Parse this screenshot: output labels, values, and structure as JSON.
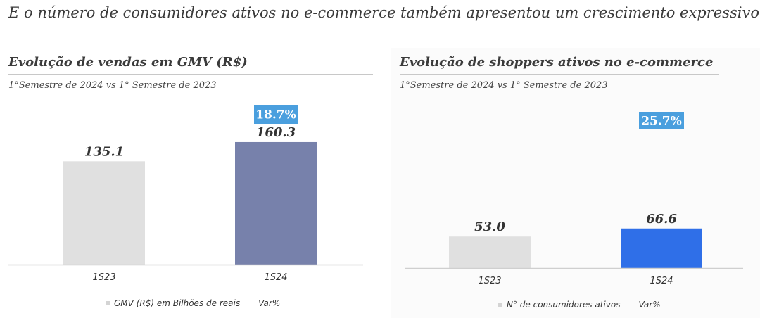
{
  "headline": "E o número de consumidores ativos no e-commerce também apresentou um crescimento expressivo",
  "colors": {
    "gray_bar": "#e0e0e0",
    "purple_bar": "#7781ab",
    "blue_bar": "#2f6fe8",
    "badge": "#4a9fde"
  },
  "chart_data": [
    {
      "type": "bar",
      "title": "Evolução de vendas em GMV (R$)",
      "subtitle": "1°Semestre de 2024 vs 1° Semestre de 2023",
      "categories": [
        "1S23",
        "1S24"
      ],
      "series": [
        {
          "name": "GMV (R$) em Bilhões de reais",
          "values": [
            135.1,
            160.3
          ],
          "labels": [
            "135.1",
            "160.3"
          ]
        }
      ],
      "var_series_name": "Var%",
      "var_label": "18.7%",
      "ylim": [
        0,
        175
      ],
      "bar_colors": [
        "#e0e0e0",
        "#7781ab"
      ],
      "legend_position": "bottom"
    },
    {
      "type": "bar",
      "title": "Evolução de shoppers ativos no e-commerce",
      "subtitle": "1°Semestre de 2024 vs 1° Semestre de 2023",
      "categories": [
        "1S23",
        "1S24"
      ],
      "series": [
        {
          "name": "N° de consumidores ativos",
          "values": [
            53.0,
            66.6
          ],
          "labels": [
            "53.0",
            "66.6"
          ]
        }
      ],
      "var_series_name": "Var%",
      "var_label": "25.7%",
      "ylim": [
        0,
        225
      ],
      "bar_colors": [
        "#e0e0e0",
        "#2f6fe8"
      ],
      "legend_position": "bottom"
    }
  ]
}
